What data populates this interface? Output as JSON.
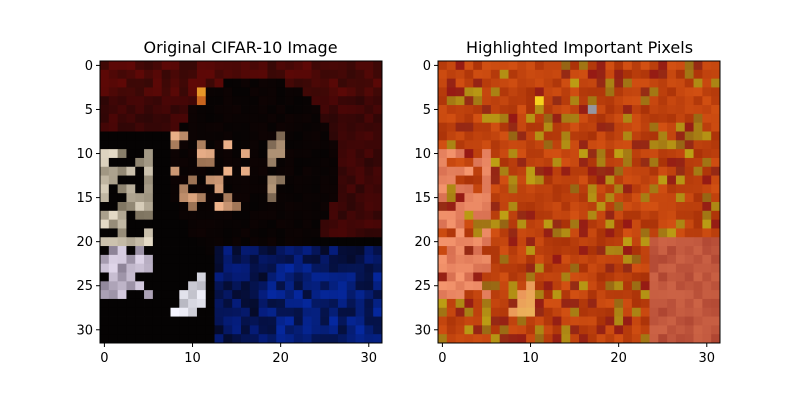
{
  "figure": {
    "background": "#ffffff",
    "left_title": "Original CIFAR-10 Image",
    "right_title": "Highlighted Important Pixels"
  },
  "chart_data": [
    {
      "type": "heatmap",
      "title": "Original CIFAR-10 Image",
      "xlabel": "",
      "ylabel": "",
      "xlim": [
        -0.5,
        31.5
      ],
      "ylim": [
        31.5,
        -0.5
      ],
      "x_ticks": [
        0,
        10,
        20,
        30
      ],
      "y_ticks": [
        0,
        5,
        10,
        15,
        20,
        25,
        30
      ],
      "grid_size": 32,
      "grid": false,
      "dominant_colors": [
        "#050202",
        "#2a0707",
        "#8a1a0a",
        "#c9c0b0",
        "#0a1a6a",
        "#e8a040"
      ]
    },
    {
      "type": "heatmap",
      "title": "Highlighted Important Pixels",
      "xlabel": "",
      "ylabel": "",
      "xlim": [
        -0.5,
        31.5
      ],
      "ylim": [
        31.5,
        -0.5
      ],
      "x_ticks": [
        0,
        10,
        20,
        30
      ],
      "y_ticks": [
        0,
        5,
        10,
        15,
        20,
        25,
        30
      ],
      "grid_size": 32,
      "grid": false,
      "dominant_colors": [
        "#b23a06",
        "#c44a0a",
        "#a02a10",
        "#b07020",
        "#e89070",
        "#e8c020"
      ]
    }
  ]
}
